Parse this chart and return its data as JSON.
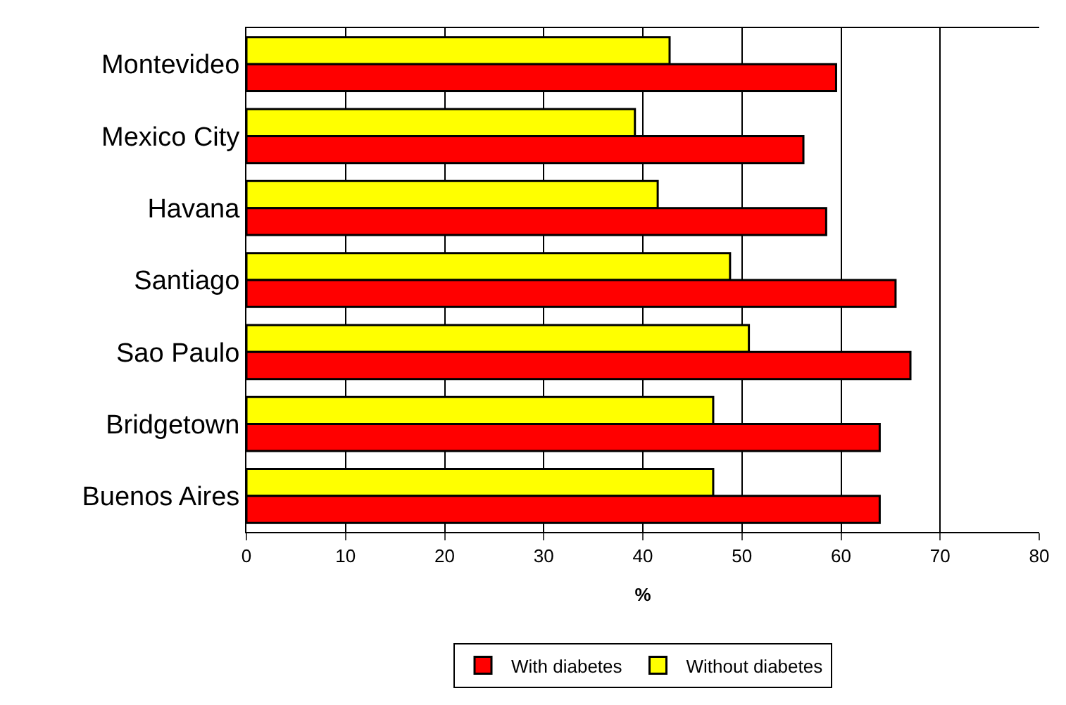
{
  "chart_data": {
    "type": "bar",
    "orientation": "horizontal",
    "categories": [
      "Montevideo",
      "Mexico City",
      "Havana",
      "Santiago",
      "Sao Paulo",
      "Bridgetown",
      "Buenos Aires"
    ],
    "series": [
      {
        "name": "With diabetes",
        "color": "#ff0000",
        "values": [
          59.5,
          56.2,
          58.5,
          65.5,
          67.0,
          63.9,
          63.9
        ]
      },
      {
        "name": "Without diabetes",
        "color": "#ffff00",
        "values": [
          42.7,
          39.2,
          41.5,
          48.8,
          50.7,
          47.1,
          47.1
        ]
      }
    ],
    "xlabel": "%",
    "xlim": [
      0,
      80
    ],
    "xticks": [
      0,
      10,
      20,
      30,
      40,
      50,
      60,
      70,
      80
    ],
    "grid": "x",
    "legend": "bottom"
  }
}
